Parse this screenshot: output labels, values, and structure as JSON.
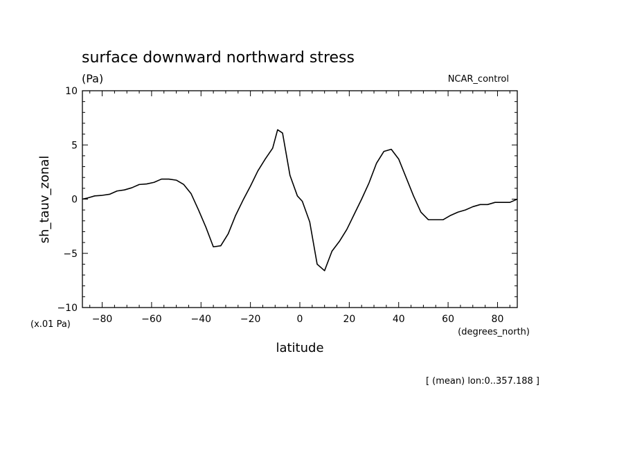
{
  "chart_data": {
    "type": "line",
    "title": "surface downward northward stress",
    "subtitle": "(Pa)",
    "label_right": "NCAR_control",
    "xlabel": "latitude",
    "xunits": "(degrees_north)",
    "ylabel": "sh_tauv_zonal",
    "yscale_note": "(x.01 Pa)",
    "footer": "[ (mean) lon:0..357.188 ]",
    "xlim": [
      -88,
      88
    ],
    "ylim": [
      -10,
      10
    ],
    "xticks": [
      -80,
      -60,
      -40,
      -20,
      0,
      20,
      40,
      60,
      80
    ],
    "yticks": [
      -10,
      -5,
      0,
      5,
      10
    ],
    "grid": false,
    "line_color": "#000000",
    "series": [
      {
        "x": [
          -88,
          -86,
          -83,
          -80,
          -77,
          -74,
          -71,
          -68,
          -65,
          -62,
          -59,
          -56,
          -53,
          -50,
          -47,
          -44,
          -41,
          -38,
          -35,
          -32,
          -29,
          -26,
          -23,
          -20,
          -17,
          -14,
          -11,
          -9,
          -7,
          -4,
          -1,
          1,
          4,
          7,
          10,
          13,
          16,
          19,
          22,
          25,
          28,
          31,
          34,
          37,
          40,
          43,
          46,
          49,
          52,
          55,
          58,
          61,
          64,
          67,
          70,
          73,
          76,
          79,
          82,
          85,
          88
        ],
        "y": [
          0.0,
          0.1,
          0.3,
          0.35,
          0.45,
          0.75,
          0.85,
          1.05,
          1.35,
          1.4,
          1.55,
          1.85,
          1.85,
          1.75,
          1.35,
          0.5,
          -1.0,
          -2.6,
          -4.4,
          -4.3,
          -3.2,
          -1.5,
          -0.1,
          1.2,
          2.6,
          3.7,
          4.7,
          6.4,
          6.1,
          2.2,
          0.3,
          -0.2,
          -2.1,
          -6.0,
          -6.6,
          -4.8,
          -3.9,
          -2.8,
          -1.4,
          0.0,
          1.5,
          3.3,
          4.4,
          4.6,
          3.7,
          2.0,
          0.3,
          -1.2,
          -1.9,
          -1.9,
          -1.9,
          -1.5,
          -1.2,
          -1.0,
          -0.7,
          -0.5,
          -0.5,
          -0.3,
          -0.3,
          -0.3,
          0.0
        ]
      }
    ]
  }
}
